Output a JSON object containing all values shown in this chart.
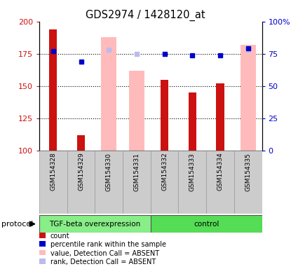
{
  "title": "GDS2974 / 1428120_at",
  "samples": [
    "GSM154328",
    "GSM154329",
    "GSM154330",
    "GSM154331",
    "GSM154332",
    "GSM154333",
    "GSM154334",
    "GSM154335"
  ],
  "count_values": [
    194,
    112,
    null,
    null,
    155,
    145,
    152,
    null
  ],
  "count_color": "#cc1111",
  "absent_bar_values": [
    null,
    null,
    188,
    162,
    null,
    null,
    null,
    182
  ],
  "absent_bar_color": "#ffbbbb",
  "percentile_values": [
    177,
    169,
    null,
    null,
    175,
    174,
    174,
    179
  ],
  "percentile_color": "#0000cc",
  "absent_rank_values": [
    null,
    null,
    178,
    175,
    null,
    null,
    null,
    178
  ],
  "absent_rank_color": "#bbbbee",
  "ylim_left": [
    100,
    200
  ],
  "ylim_right": [
    0,
    100
  ],
  "yticks_left": [
    100,
    125,
    150,
    175,
    200
  ],
  "yticks_right": [
    0,
    25,
    50,
    75,
    100
  ],
  "ytick_labels_left": [
    "100",
    "125",
    "150",
    "175",
    "200"
  ],
  "ytick_labels_right": [
    "0",
    "25",
    "50",
    "75",
    "100%"
  ],
  "protocol_groups": [
    {
      "label": "TGF-beta overexpression",
      "start": 0,
      "end": 3,
      "color": "#88ee88"
    },
    {
      "label": "control",
      "start": 4,
      "end": 7,
      "color": "#55dd55"
    }
  ],
  "protocol_label": "protocol",
  "legend_items": [
    {
      "color": "#cc1111",
      "label": "count"
    },
    {
      "color": "#0000cc",
      "label": "percentile rank within the sample"
    },
    {
      "color": "#ffbbbb",
      "label": "value, Detection Call = ABSENT"
    },
    {
      "color": "#bbbbee",
      "label": "rank, Detection Call = ABSENT"
    }
  ],
  "figsize": [
    4.15,
    3.84
  ],
  "dpi": 100
}
